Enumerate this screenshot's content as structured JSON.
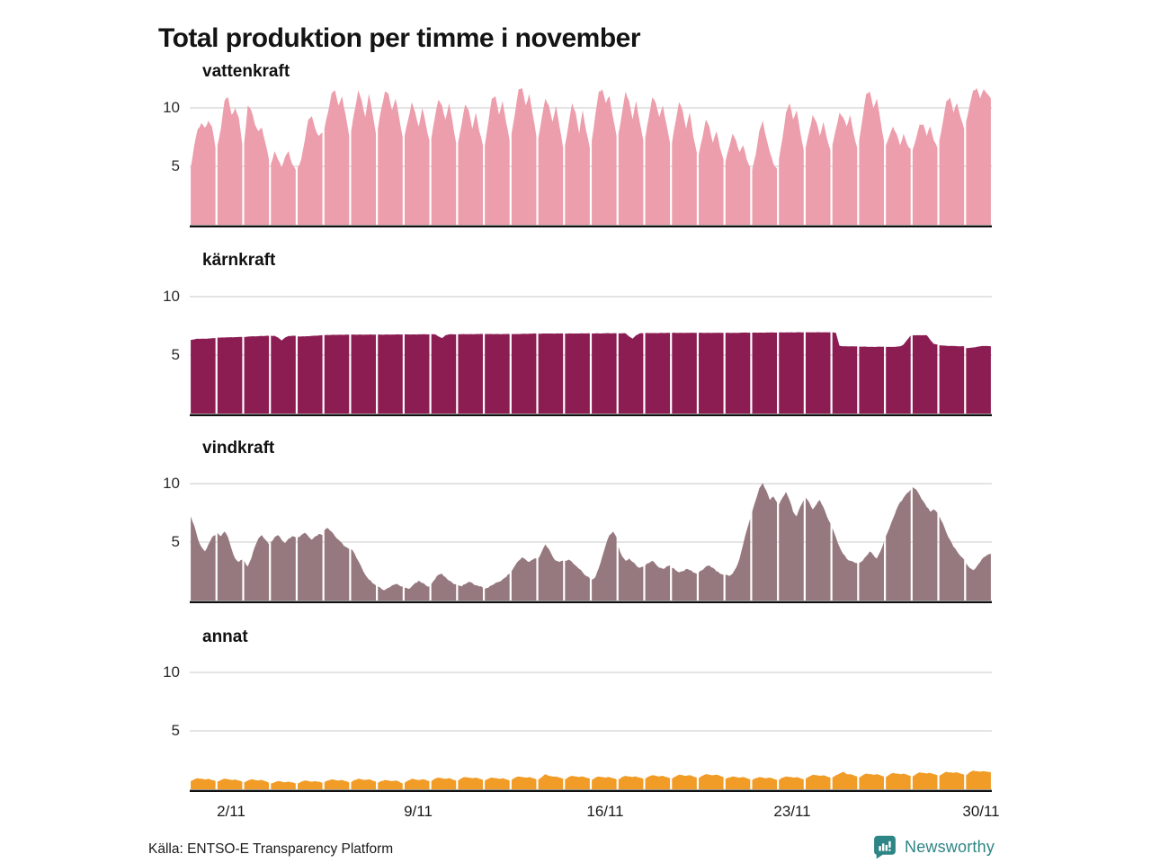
{
  "title": "Total produktion per timme i november",
  "footer": {
    "source": "Källa: ENTSO-E Transparency Platform",
    "brand": "Newsworthy",
    "brand_color": "#2E8585"
  },
  "axis": {
    "y_ticks": [
      "10",
      "5"
    ],
    "y_tick_values": [
      10,
      5
    ],
    "y_max": 12,
    "days": 30,
    "x_tick_days": [
      2,
      9,
      16,
      23,
      30
    ],
    "x_tick_labels": [
      "2/11",
      "9/11",
      "16/11",
      "23/11",
      "30/11"
    ],
    "grid_color": "#DCDCDC",
    "axis_color": "#101010"
  },
  "chart_data": [
    {
      "type": "area",
      "name": "vattenkraft",
      "color": "#EC9EAC",
      "samples_per_day": 8,
      "roughness": 0.22,
      "days": [
        [
          4.9,
          6.8,
          8.2,
          8.7,
          8.3,
          8.9,
          8.4,
          6.6
        ],
        [
          6.8,
          8.3,
          10.6,
          10.9,
          9.4,
          10.0,
          9.2,
          6.9
        ],
        [
          7.0,
          10.2,
          9.8,
          8.6,
          8.0,
          8.3,
          7.0,
          5.6
        ],
        [
          5.2,
          6.3,
          5.6,
          4.9,
          5.8,
          6.3,
          5.2,
          4.7
        ],
        [
          4.9,
          5.6,
          7.2,
          9.0,
          9.3,
          8.2,
          7.6,
          7.9
        ],
        [
          8.2,
          9.6,
          11.2,
          11.5,
          10.2,
          11.0,
          9.4,
          7.6
        ],
        [
          8.0,
          9.8,
          11.5,
          10.6,
          9.2,
          11.2,
          9.6,
          7.8
        ],
        [
          8.2,
          10.0,
          11.4,
          11.2,
          9.8,
          10.8,
          9.2,
          7.5
        ],
        [
          7.6,
          9.0,
          10.5,
          9.6,
          8.4,
          10.0,
          8.6,
          7.2
        ],
        [
          7.4,
          9.2,
          10.7,
          10.2,
          9.0,
          10.4,
          8.8,
          7.0
        ],
        [
          7.0,
          8.6,
          10.3,
          9.8,
          8.2,
          9.6,
          8.0,
          6.8
        ],
        [
          6.8,
          8.8,
          10.8,
          11.0,
          9.4,
          10.6,
          8.8,
          7.2
        ],
        [
          7.8,
          9.6,
          11.6,
          11.7,
          10.2,
          11.2,
          9.4,
          7.6
        ],
        [
          7.4,
          9.2,
          10.8,
          10.2,
          8.8,
          10.2,
          8.4,
          6.6
        ],
        [
          6.8,
          8.6,
          10.4,
          9.6,
          7.8,
          9.8,
          8.0,
          6.6
        ],
        [
          7.2,
          9.4,
          11.4,
          11.6,
          10.4,
          11.0,
          9.2,
          7.6
        ],
        [
          7.8,
          9.6,
          11.4,
          10.6,
          9.0,
          10.6,
          8.8,
          7.2
        ],
        [
          7.4,
          9.2,
          10.9,
          10.4,
          9.2,
          10.2,
          8.6,
          7.0
        ],
        [
          7.0,
          8.8,
          10.5,
          9.8,
          8.2,
          9.6,
          7.6,
          6.2
        ],
        [
          6.0,
          7.4,
          9.0,
          8.4,
          7.0,
          8.0,
          6.6,
          5.6
        ],
        [
          5.4,
          6.6,
          7.8,
          7.2,
          6.2,
          6.8,
          5.6,
          4.9
        ],
        [
          4.7,
          6.0,
          8.0,
          8.9,
          7.4,
          6.2,
          5.2,
          4.8
        ],
        [
          5.6,
          7.4,
          9.6,
          10.4,
          9.0,
          9.8,
          8.0,
          6.4
        ],
        [
          6.6,
          8.0,
          9.4,
          8.8,
          7.6,
          8.8,
          7.4,
          6.4
        ],
        [
          6.8,
          8.2,
          9.6,
          9.2,
          8.4,
          9.4,
          7.8,
          6.6
        ],
        [
          7.2,
          9.2,
          11.2,
          11.4,
          10.0,
          10.8,
          9.0,
          7.2
        ],
        [
          6.8,
          7.6,
          8.4,
          7.8,
          6.8,
          7.8,
          6.9,
          6.5
        ],
        [
          6.4,
          7.4,
          8.6,
          8.6,
          7.6,
          8.4,
          7.2,
          6.6
        ],
        [
          7.2,
          8.8,
          10.6,
          10.9,
          9.6,
          10.4,
          9.2,
          8.2
        ],
        [
          8.8,
          10.2,
          11.5,
          11.7,
          10.8,
          11.6,
          11.2,
          10.8
        ]
      ]
    },
    {
      "type": "area",
      "name": "kärnkraft",
      "color": "#8C1D53",
      "samples_per_day": 8,
      "roughness": 0.03,
      "days": [
        [
          6.3,
          6.35,
          6.4,
          6.4,
          6.4,
          6.42,
          6.44,
          6.45
        ],
        [
          6.5,
          6.5,
          6.5,
          6.52,
          6.53,
          6.54,
          6.55,
          6.55
        ],
        [
          6.55,
          6.58,
          6.6,
          6.6,
          6.62,
          6.63,
          6.64,
          6.65
        ],
        [
          6.65,
          6.65,
          6.5,
          6.25,
          6.5,
          6.63,
          6.65,
          6.65
        ],
        [
          6.6,
          6.6,
          6.6,
          6.62,
          6.64,
          6.66,
          6.68,
          6.7
        ],
        [
          6.7,
          6.72,
          6.73,
          6.73,
          6.74,
          6.74,
          6.75,
          6.75
        ],
        [
          6.75,
          6.75,
          6.75,
          6.75,
          6.75,
          6.75,
          6.75,
          6.75
        ],
        [
          6.75,
          6.75,
          6.76,
          6.76,
          6.76,
          6.76,
          6.77,
          6.77
        ],
        [
          6.77,
          6.77,
          6.77,
          6.77,
          6.78,
          6.78,
          6.78,
          6.78
        ],
        [
          6.78,
          6.78,
          6.6,
          6.45,
          6.7,
          6.78,
          6.78,
          6.78
        ],
        [
          6.78,
          6.79,
          6.79,
          6.79,
          6.79,
          6.8,
          6.8,
          6.8
        ],
        [
          6.8,
          6.8,
          6.8,
          6.8,
          6.8,
          6.8,
          6.8,
          6.8
        ],
        [
          6.8,
          6.8,
          6.8,
          6.82,
          6.82,
          6.83,
          6.84,
          6.84
        ],
        [
          6.84,
          6.84,
          6.85,
          6.85,
          6.85,
          6.85,
          6.85,
          6.85
        ],
        [
          6.85,
          6.85,
          6.85,
          6.85,
          6.85,
          6.86,
          6.86,
          6.86
        ],
        [
          6.86,
          6.86,
          6.86,
          6.86,
          6.87,
          6.87,
          6.87,
          6.87
        ],
        [
          6.87,
          6.87,
          6.87,
          6.6,
          6.4,
          6.7,
          6.87,
          6.87
        ],
        [
          6.88,
          6.88,
          6.88,
          6.88,
          6.89,
          6.89,
          6.9,
          6.9
        ],
        [
          6.9,
          6.9,
          6.9,
          6.9,
          6.9,
          6.9,
          6.9,
          6.9
        ],
        [
          6.9,
          6.9,
          6.9,
          6.9,
          6.9,
          6.9,
          6.9,
          6.9
        ],
        [
          6.9,
          6.9,
          6.9,
          6.9,
          6.91,
          6.92,
          6.92,
          6.92
        ],
        [
          6.92,
          6.92,
          6.92,
          6.92,
          6.93,
          6.93,
          6.93,
          6.93
        ],
        [
          6.94,
          6.94,
          6.94,
          6.94,
          6.94,
          6.95,
          6.95,
          6.95
        ],
        [
          6.95,
          6.95,
          6.95,
          6.95,
          6.95,
          6.95,
          6.95,
          6.95
        ],
        [
          6.95,
          6.9,
          5.8,
          5.75,
          5.75,
          5.75,
          5.75,
          5.75
        ],
        [
          5.72,
          5.72,
          5.72,
          5.7,
          5.7,
          5.71,
          5.72,
          5.72
        ],
        [
          5.7,
          5.7,
          5.7,
          5.72,
          5.75,
          5.9,
          6.3,
          6.68
        ],
        [
          6.7,
          6.7,
          6.7,
          6.7,
          6.7,
          6.3,
          5.95,
          5.9
        ],
        [
          5.85,
          5.82,
          5.8,
          5.78,
          5.78,
          5.76,
          5.75,
          5.75
        ],
        [
          5.6,
          5.62,
          5.65,
          5.7,
          5.75,
          5.78,
          5.78,
          5.75
        ]
      ]
    },
    {
      "type": "area",
      "name": "vindkraft",
      "color": "#96797F",
      "samples_per_day": 8,
      "roughness": 0.14,
      "days": [
        [
          7.2,
          6.4,
          5.3,
          4.6,
          4.2,
          4.8,
          5.4,
          5.6
        ],
        [
          5.8,
          5.5,
          5.9,
          5.4,
          4.4,
          3.6,
          3.3,
          3.5
        ],
        [
          3.4,
          2.9,
          3.6,
          4.6,
          5.3,
          5.6,
          5.2,
          4.8
        ],
        [
          5.0,
          5.4,
          5.6,
          5.2,
          4.9,
          5.3,
          5.5,
          5.4
        ],
        [
          5.4,
          5.6,
          5.8,
          5.5,
          5.2,
          5.5,
          5.7,
          5.6
        ],
        [
          6.0,
          6.2,
          5.9,
          5.5,
          5.2,
          4.9,
          4.6,
          4.4
        ],
        [
          4.4,
          4.0,
          3.4,
          2.8,
          2.2,
          1.8,
          1.5,
          1.3
        ],
        [
          1.2,
          1.0,
          0.9,
          1.1,
          1.3,
          1.4,
          1.3,
          1.2
        ],
        [
          1.1,
          1.0,
          1.2,
          1.5,
          1.7,
          1.5,
          1.3,
          1.2
        ],
        [
          1.4,
          1.8,
          2.2,
          2.3,
          2.0,
          1.7,
          1.5,
          1.4
        ],
        [
          1.3,
          1.2,
          1.4,
          1.6,
          1.5,
          1.3,
          1.2,
          1.1
        ],
        [
          1.0,
          1.1,
          1.3,
          1.5,
          1.6,
          1.8,
          2.0,
          2.3
        ],
        [
          2.5,
          3.0,
          3.4,
          3.7,
          3.5,
          3.3,
          3.5,
          3.6
        ],
        [
          3.6,
          4.2,
          4.8,
          4.4,
          3.8,
          3.4,
          3.3,
          3.4
        ],
        [
          3.4,
          3.5,
          3.3,
          3.0,
          2.7,
          2.4,
          2.1,
          1.9
        ],
        [
          1.8,
          2.0,
          2.8,
          3.8,
          4.8,
          5.6,
          5.9,
          5.4
        ],
        [
          4.6,
          3.8,
          3.4,
          3.6,
          3.3,
          3.0,
          2.8,
          2.9
        ],
        [
          3.0,
          3.2,
          3.4,
          3.1,
          2.8,
          2.7,
          2.9,
          3.0
        ],
        [
          2.8,
          2.6,
          2.4,
          2.5,
          2.7,
          2.6,
          2.4,
          2.3
        ],
        [
          2.4,
          2.6,
          2.9,
          3.0,
          2.8,
          2.5,
          2.3,
          2.2
        ],
        [
          2.2,
          2.1,
          2.3,
          2.8,
          3.6,
          4.8,
          6.0,
          7.0
        ],
        [
          7.6,
          8.6,
          9.6,
          10.05,
          9.4,
          8.6,
          8.9,
          8.4
        ],
        [
          8.2,
          8.8,
          9.3,
          8.6,
          7.6,
          7.2,
          8.0,
          8.6
        ],
        [
          8.8,
          8.4,
          7.8,
          8.2,
          8.6,
          8.0,
          7.2,
          6.6
        ],
        [
          6.2,
          5.4,
          4.6,
          4.0,
          3.6,
          3.4,
          3.3,
          3.2
        ],
        [
          3.2,
          3.4,
          3.8,
          4.2,
          3.9,
          3.6,
          4.2,
          5.0
        ],
        [
          5.5,
          6.2,
          7.0,
          7.8,
          8.4,
          8.8,
          9.2,
          9.5
        ],
        [
          9.7,
          9.5,
          9.0,
          8.5,
          8.0,
          7.6,
          7.8,
          7.5
        ],
        [
          7.2,
          6.6,
          5.8,
          5.2,
          4.6,
          4.2,
          3.8,
          3.5
        ],
        [
          3.2,
          2.8,
          2.6,
          2.9,
          3.3,
          3.7,
          3.9,
          4.0
        ]
      ]
    },
    {
      "type": "area",
      "name": "annat",
      "color": "#F19C26",
      "samples_per_day": 8,
      "roughness": 0.05,
      "days": [
        [
          0.7,
          0.85,
          0.95,
          0.9,
          0.85,
          0.9,
          0.8,
          0.7
        ],
        [
          0.65,
          0.8,
          0.9,
          0.85,
          0.8,
          0.85,
          0.75,
          0.65
        ],
        [
          0.6,
          0.75,
          0.85,
          0.8,
          0.75,
          0.8,
          0.7,
          0.55
        ],
        [
          0.5,
          0.6,
          0.7,
          0.65,
          0.6,
          0.65,
          0.6,
          0.5
        ],
        [
          0.5,
          0.65,
          0.75,
          0.7,
          0.65,
          0.7,
          0.65,
          0.55
        ],
        [
          0.6,
          0.75,
          0.85,
          0.8,
          0.75,
          0.8,
          0.7,
          0.6
        ],
        [
          0.6,
          0.8,
          0.9,
          0.85,
          0.8,
          0.85,
          0.75,
          0.65
        ],
        [
          0.55,
          0.7,
          0.8,
          0.75,
          0.7,
          0.75,
          0.65,
          0.5
        ],
        [
          0.55,
          0.75,
          0.9,
          0.85,
          0.8,
          0.85,
          0.8,
          0.7
        ],
        [
          0.7,
          0.9,
          1.0,
          0.95,
          0.9,
          0.95,
          0.85,
          0.75
        ],
        [
          0.75,
          0.95,
          1.05,
          1.0,
          0.95,
          1.0,
          0.9,
          0.8
        ],
        [
          0.75,
          0.9,
          1.0,
          0.95,
          0.9,
          0.95,
          0.85,
          0.75
        ],
        [
          0.8,
          1.0,
          1.1,
          1.05,
          1.0,
          1.05,
          0.95,
          0.85
        ],
        [
          0.85,
          1.05,
          1.3,
          1.15,
          1.1,
          1.1,
          1.0,
          0.9
        ],
        [
          0.85,
          1.05,
          1.15,
          1.1,
          1.05,
          1.1,
          1.0,
          0.9
        ],
        [
          0.8,
          1.0,
          1.1,
          1.05,
          1.0,
          1.05,
          0.95,
          0.85
        ],
        [
          0.85,
          1.05,
          1.15,
          1.1,
          1.05,
          1.1,
          1.0,
          0.9
        ],
        [
          0.9,
          1.1,
          1.2,
          1.15,
          1.1,
          1.15,
          1.05,
          0.95
        ],
        [
          0.9,
          1.1,
          1.25,
          1.2,
          1.15,
          1.2,
          1.1,
          1.0
        ],
        [
          0.95,
          1.15,
          1.3,
          1.25,
          1.2,
          1.25,
          1.15,
          1.05
        ],
        [
          0.9,
          1.0,
          1.1,
          1.05,
          1.0,
          1.05,
          0.95,
          0.85
        ],
        [
          0.8,
          0.95,
          1.05,
          1.0,
          0.95,
          1.0,
          0.9,
          0.8
        ],
        [
          0.8,
          1.0,
          1.1,
          1.05,
          1.0,
          1.05,
          0.95,
          0.85
        ],
        [
          0.9,
          1.1,
          1.25,
          1.2,
          1.15,
          1.2,
          1.1,
          1.0
        ],
        [
          1.0,
          1.2,
          1.35,
          1.5,
          1.3,
          1.3,
          1.2,
          1.1
        ],
        [
          1.0,
          1.2,
          1.35,
          1.3,
          1.25,
          1.3,
          1.2,
          1.1
        ],
        [
          1.05,
          1.25,
          1.4,
          1.35,
          1.3,
          1.35,
          1.25,
          1.15
        ],
        [
          1.1,
          1.3,
          1.45,
          1.4,
          1.35,
          1.4,
          1.3,
          1.2
        ],
        [
          1.15,
          1.35,
          1.5,
          1.45,
          1.4,
          1.45,
          1.35,
          1.25
        ],
        [
          1.2,
          1.45,
          1.6,
          1.55,
          1.5,
          1.55,
          1.5,
          1.45
        ]
      ]
    }
  ]
}
